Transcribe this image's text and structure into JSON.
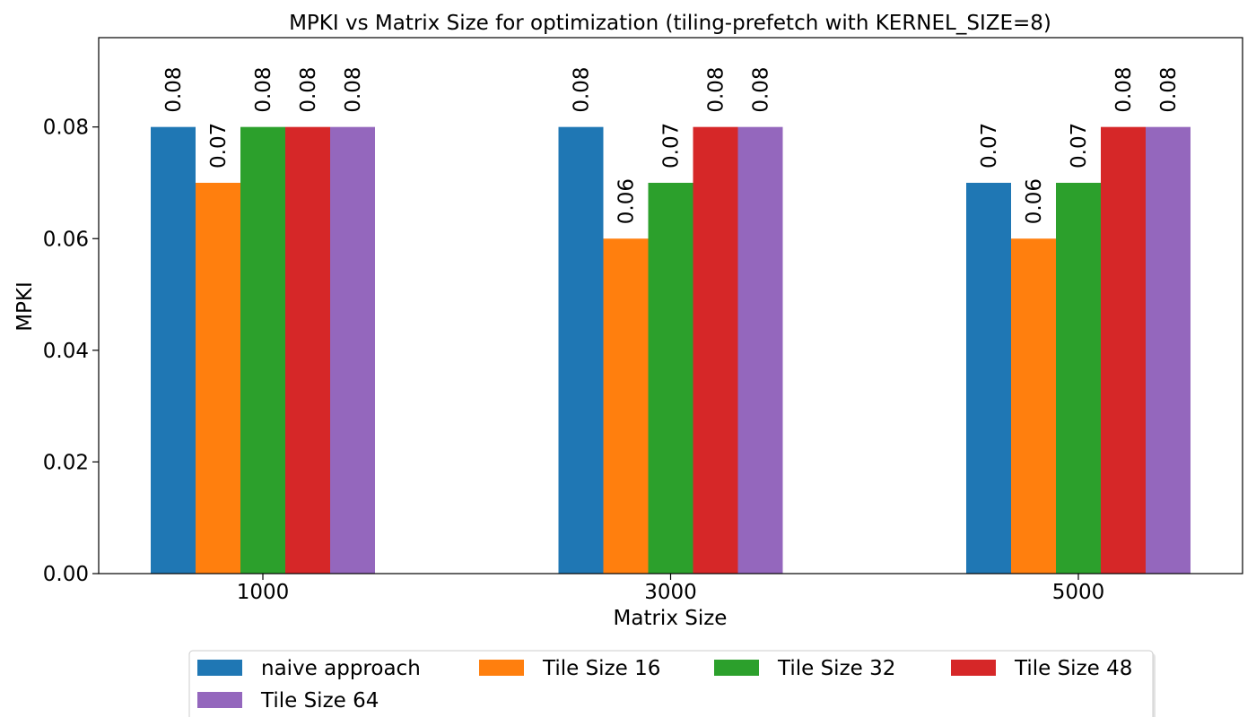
{
  "chart_data": {
    "type": "bar",
    "title": "MPKI vs Matrix Size for optimization (tiling-prefetch with KERNEL_SIZE=8)",
    "xlabel": "Matrix Size",
    "ylabel": "MPKI",
    "categories": [
      "1000",
      "3000",
      "5000"
    ],
    "series": [
      {
        "name": "naive approach",
        "color": "#1f77b4",
        "values": [
          0.08,
          0.08,
          0.07
        ],
        "labels": [
          "0.08",
          "0.08",
          "0.07"
        ]
      },
      {
        "name": "Tile Size 16",
        "color": "#ff7f0e",
        "values": [
          0.07,
          0.06,
          0.06
        ],
        "labels": [
          "0.07",
          "0.06",
          "0.06"
        ]
      },
      {
        "name": "Tile Size 32",
        "color": "#2ca02c",
        "values": [
          0.08,
          0.07,
          0.07
        ],
        "labels": [
          "0.08",
          "0.07",
          "0.07"
        ]
      },
      {
        "name": "Tile Size 48",
        "color": "#d62728",
        "values": [
          0.08,
          0.08,
          0.08
        ],
        "labels": [
          "0.08",
          "0.08",
          "0.08"
        ]
      },
      {
        "name": "Tile Size 64",
        "color": "#9467bd",
        "values": [
          0.08,
          0.08,
          0.08
        ],
        "labels": [
          "0.08",
          "0.08",
          "0.08"
        ]
      }
    ],
    "yticks": [
      "0.00",
      "0.02",
      "0.04",
      "0.06",
      "0.08"
    ],
    "ytick_values": [
      0,
      0.02,
      0.04,
      0.06,
      0.08
    ],
    "ylim": [
      0,
      0.096
    ],
    "grid": false,
    "legend_position": "bottom-center"
  }
}
